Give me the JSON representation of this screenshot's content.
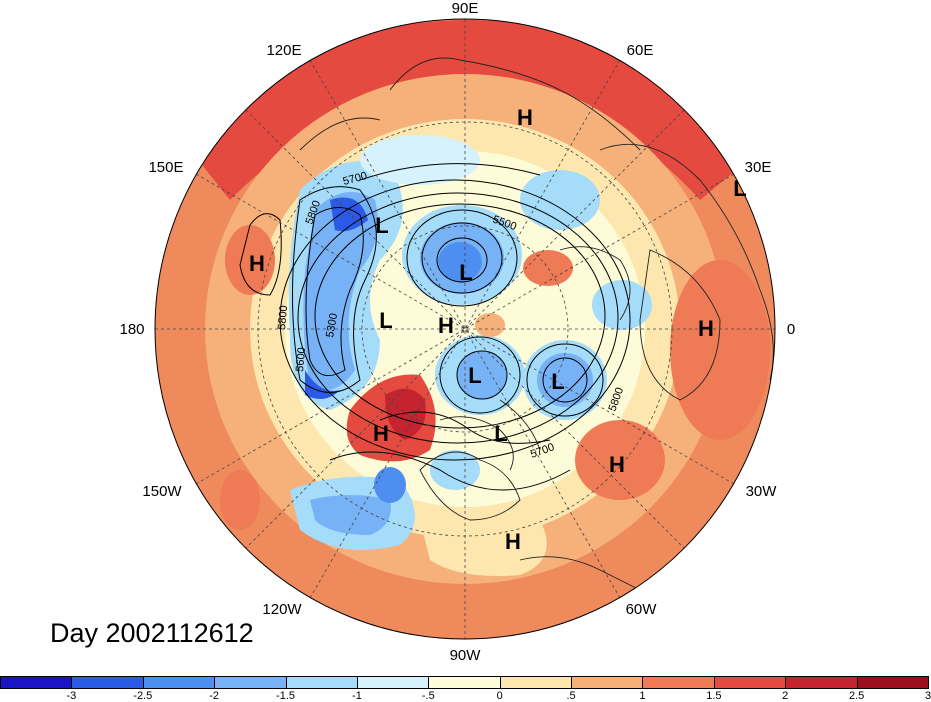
{
  "title": "Day 2002112612",
  "longitude_labels": {
    "e90": "90E",
    "e120": "120E",
    "e60": "60E",
    "e150": "150E",
    "e30": "30E",
    "lon180": "180",
    "lon0": "0",
    "w150": "150W",
    "w30": "30W",
    "w120": "120W",
    "w60": "60W",
    "w90": "90W"
  },
  "contour_labels": {
    "c5700_top": "5700",
    "c5800_left": "5800",
    "c5500": "5500",
    "c5300": "5300",
    "c5800_w": "5800",
    "c5600": "5600",
    "c5800_e": "5800",
    "c5700_bottom": "5700"
  },
  "pressure_centers": {
    "h_north": "H",
    "l_east": "L",
    "l_nw": "L",
    "h_west": "H",
    "l_center_top": "L",
    "l_center_left": "L",
    "h_center": "H",
    "h_east": "H",
    "l_center_mid": "L",
    "l_right": "L",
    "h_sw": "H",
    "l_center_low": "L",
    "h_se": "H",
    "h_south": "H"
  },
  "colorbar": {
    "colors": [
      "#1a14c8",
      "#2a5ae6",
      "#4d8ef0",
      "#76b2f5",
      "#a5dcfa",
      "#d6f2fc",
      "#fdfbd8",
      "#fde7ae",
      "#f6b07a",
      "#ee7b55",
      "#e44a3f",
      "#c42430",
      "#9e0f1e"
    ],
    "labels": [
      "-3",
      "-2.5",
      "-2",
      "-1.5",
      "-1",
      "-.5",
      "0",
      ".5",
      "1",
      "1.5",
      "2",
      "2.5",
      "3"
    ]
  },
  "colors": {
    "background": "#ffffff",
    "warm": "#ef8a5c",
    "warm_strong": "#e2463b",
    "cool": "#7cc0f2",
    "cool_strong": "#3a78e0"
  }
}
